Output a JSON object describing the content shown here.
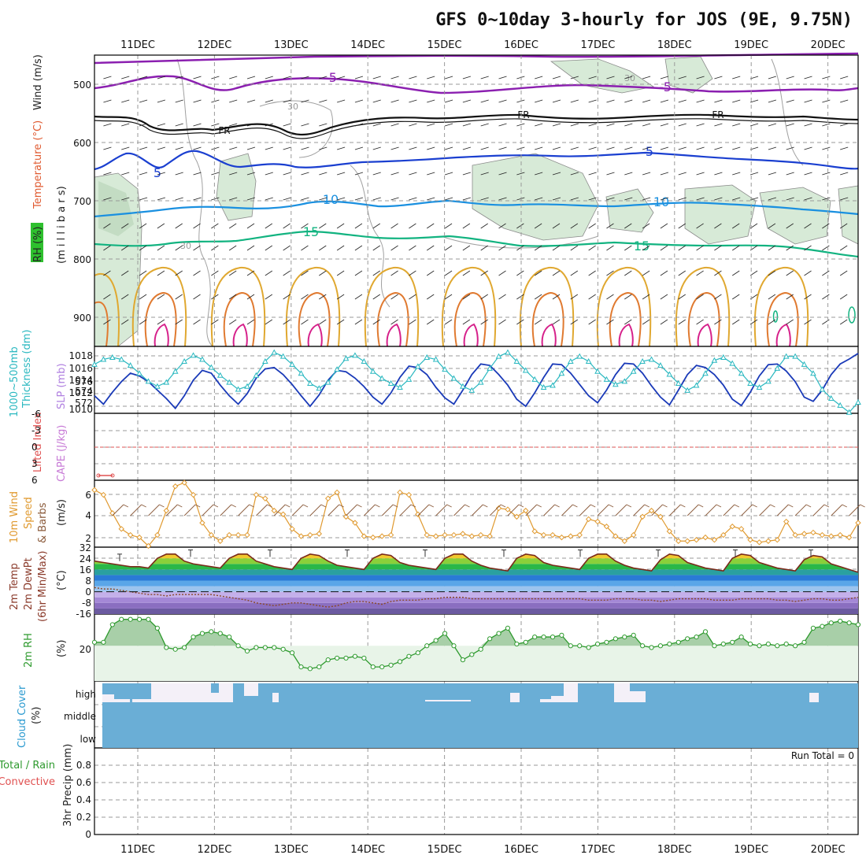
{
  "title": "GFS 0~10day 3-hourly for JOS (9E, 9.75N)",
  "run_total": "Run Total = 0",
  "dates": [
    "11DEC",
    "12DEC",
    "13DEC",
    "14DEC",
    "15DEC",
    "16DEC",
    "17DEC",
    "18DEC",
    "19DEC",
    "20DEC"
  ],
  "panels": {
    "upper": {
      "labels": [
        "RH (%)",
        "Temperature (°C)",
        "Wind (m/s)"
      ],
      "unit_label": "(m i l l i b a r s)",
      "ticks": [
        "500",
        "600",
        "700",
        "800",
        "900"
      ]
    },
    "thickness": {
      "left_label": "1000~500mb",
      "left_label2": "Thickness (dm)",
      "right_label": "SLP (mb)",
      "thk_ticks": [
        "576",
        "574",
        "572"
      ],
      "slp_ticks": [
        "1018",
        "1016",
        "1014",
        "1012",
        "1010"
      ]
    },
    "cape": {
      "label1": "Lifted Index",
      "label2": "CAPE (J/kg)",
      "ticks": [
        "-6",
        "-3",
        "0",
        "3",
        "6"
      ]
    },
    "wind10m": {
      "label1": "10m Wind",
      "label2": "Speed",
      "label3": "& Barbs",
      "unit": "(m/s)",
      "ticks": [
        "6",
        "4",
        "2"
      ]
    },
    "temp2m": {
      "label1": "2m Temp",
      "label2": "2m DewPt",
      "label3": "(6hr Min/Max)",
      "unit": "(°C)",
      "ticks": [
        "32",
        "24",
        "16",
        "8",
        "0",
        "-8",
        "-16"
      ]
    },
    "rh2m": {
      "label": "2m RH",
      "unit": "(%)",
      "ticks": [
        "20"
      ]
    },
    "cloud": {
      "label": "Cloud Cover",
      "unit": "(%)",
      "ticks": [
        "high",
        "middle",
        "low"
      ]
    },
    "precip": {
      "label1": "Total / Rain",
      "label2": "Convective",
      "label3": "3hr Precip (mm)",
      "ticks": [
        "0.8",
        "0.6",
        "0.4",
        "0.2",
        "0"
      ]
    }
  },
  "contour_labels": [
    "-5",
    "-5",
    "FR",
    "FR",
    "FR",
    "5",
    "5",
    "10",
    "10",
    "15",
    "15",
    "30",
    "30",
    "30"
  ],
  "colors": {
    "rh_fill": "#d6ead6",
    "temp_purple": "#8b1fb0",
    "temp_blue": "#1a3fd0",
    "temp_cyan": "#1a90e0",
    "temp_green": "#12b380",
    "slp": "#1a3ab8",
    "thickness": "#2ab8c0",
    "wind": "#e09a30",
    "rh2m": "#2e9a2e",
    "cloud": "#6aaed6",
    "cape_zero": "#e05050"
  },
  "chart_data": {
    "type": "line",
    "x_unit": "3-hourly steps from 10 DEC 12Z",
    "date_labels": [
      "11DEC",
      "12DEC",
      "13DEC",
      "14DEC",
      "15DEC",
      "16DEC",
      "17DEC",
      "18DEC",
      "19DEC",
      "20DEC"
    ],
    "series": [
      {
        "name": "SLP (mb)",
        "ylim": [
          1009.5,
          1019
        ],
        "values": [
          1012.0,
          1010.8,
          1012.5,
          1014.0,
          1015.2,
          1014.8,
          1014.0,
          1012.8,
          1011.6,
          1010.2,
          1012.0,
          1014.2,
          1015.6,
          1015.2,
          1013.5,
          1012.0,
          1010.8,
          1012.3,
          1014.5,
          1015.8,
          1016.0,
          1015.0,
          1013.6,
          1012.0,
          1010.5,
          1012.1,
          1014.2,
          1015.6,
          1015.4,
          1014.5,
          1013.3,
          1011.8,
          1010.8,
          1012.4,
          1014.6,
          1016.2,
          1016.0,
          1015.0,
          1013.2,
          1011.7,
          1010.8,
          1012.8,
          1015.0,
          1016.5,
          1016.3,
          1015.0,
          1013.5,
          1011.5,
          1010.5,
          1012.4,
          1014.6,
          1016.5,
          1016.4,
          1015.2,
          1013.6,
          1012.0,
          1011.0,
          1012.8,
          1015.0,
          1016.6,
          1016.5,
          1015.2,
          1013.4,
          1011.8,
          1010.7,
          1012.8,
          1015.0,
          1016.3,
          1016.0,
          1015.0,
          1013.5,
          1011.5,
          1010.6,
          1012.5,
          1014.8,
          1016.4,
          1016.5,
          1015.5,
          1014.0,
          1011.8,
          1011.2,
          1012.8,
          1015.0,
          1016.5,
          1017.2,
          1018.0
        ]
      },
      {
        "name": "1000~500mb Thickness (dm)",
        "ylim": [
          570.8,
          577.5
        ],
        "values": [
          575.7,
          576.2,
          576.4,
          576.2,
          575.6,
          574.8,
          574.0,
          573.5,
          573.9,
          575.0,
          576.0,
          576.6,
          576.2,
          575.4,
          574.6,
          573.9,
          573.2,
          573.5,
          574.6,
          576.0,
          576.9,
          576.5,
          575.7,
          574.8,
          573.8,
          573.3,
          573.9,
          575.2,
          576.3,
          576.6,
          576.0,
          575.0,
          574.3,
          573.8,
          573.4,
          574.2,
          575.5,
          576.4,
          576.2,
          575.2,
          574.3,
          573.5,
          573.1,
          573.9,
          575.3,
          576.5,
          576.9,
          576.0,
          575.1,
          574.2,
          573.4,
          573.6,
          574.8,
          576.0,
          576.5,
          576.0,
          575.0,
          574.2,
          573.7,
          574.0,
          575.0,
          576.0,
          576.2,
          575.6,
          574.7,
          573.8,
          573.1,
          573.6,
          574.8,
          576.1,
          576.4,
          575.8,
          574.8,
          573.8,
          573.4,
          574.0,
          575.3,
          576.5,
          576.5,
          575.7,
          574.8,
          573.2,
          572.3,
          571.6,
          570.9,
          571.9
        ]
      },
      {
        "name": "10m Wind Speed (m/s)",
        "ylim": [
          1.5,
          7
        ],
        "values": [
          6.2,
          5.8,
          4.3,
          3.0,
          2.5,
          2.3,
          1.6,
          2.5,
          4.5,
          6.5,
          6.8,
          5.8,
          3.5,
          2.5,
          2.0,
          2.5,
          2.5,
          2.5,
          5.8,
          5.5,
          4.5,
          4.2,
          3.0,
          2.4,
          2.5,
          2.6,
          5.5,
          6.0,
          4.0,
          3.5,
          2.4,
          2.3,
          2.4,
          2.5,
          6.0,
          5.8,
          4.2,
          2.5,
          2.4,
          2.5,
          2.5,
          2.6,
          2.4,
          2.5,
          2.4,
          4.7,
          4.6,
          4.0,
          4.5,
          2.8,
          2.5,
          2.5,
          2.3,
          2.4,
          2.5,
          3.8,
          3.6,
          3.2,
          2.4,
          2.0,
          2.5,
          4.0,
          4.5,
          4.0,
          2.8,
          2.0,
          2.0,
          2.1,
          2.3,
          2.1,
          2.5,
          3.2,
          3.0,
          2.1,
          1.9,
          2.0,
          2.1,
          3.6,
          2.5,
          2.6,
          2.7,
          2.5,
          2.4,
          2.5,
          2.3,
          3.5
        ]
      },
      {
        "name": "2m Temp (°C)",
        "ylim": [
          -16,
          32
        ],
        "values": [
          22,
          21,
          20,
          19,
          18,
          18,
          17,
          24,
          27,
          27,
          22,
          20,
          19,
          18,
          17,
          24,
          27,
          27,
          22,
          20,
          18,
          17,
          16,
          24,
          27,
          26,
          22,
          19,
          18,
          17,
          16,
          24,
          27,
          26,
          21,
          19,
          18,
          17,
          16,
          24,
          27,
          27,
          22,
          19,
          17,
          16,
          15,
          24,
          27,
          26,
          21,
          19,
          18,
          17,
          16,
          24,
          27,
          27,
          22,
          19,
          17,
          16,
          15,
          23,
          27,
          26,
          21,
          19,
          17,
          16,
          15,
          24,
          27,
          26,
          21,
          19,
          17,
          16,
          15,
          23,
          26,
          25,
          20,
          18,
          16,
          14
        ]
      },
      {
        "name": "2m DewPt (°C)",
        "ylim": [
          -16,
          32
        ],
        "values": [
          3,
          2,
          2,
          1,
          0,
          -1,
          -2,
          -2,
          -3,
          -2,
          -2,
          -2,
          -2,
          -2,
          -3,
          -4,
          -5,
          -6,
          -8,
          -9,
          -10,
          -9,
          -8,
          -8,
          -9,
          -10,
          -11,
          -10,
          -8,
          -7,
          -7,
          -8,
          -9,
          -7,
          -6,
          -6,
          -6,
          -5,
          -5,
          -4,
          -4,
          -4,
          -5,
          -5,
          -5,
          -5,
          -5,
          -5,
          -5,
          -5,
          -5,
          -5,
          -5,
          -5,
          -5,
          -6,
          -6,
          -6,
          -5,
          -5,
          -5,
          -6,
          -6,
          -7,
          -6,
          -5,
          -5,
          -5,
          -5,
          -6,
          -6,
          -6,
          -5,
          -5,
          -5,
          -5,
          -6,
          -6,
          -7,
          -6,
          -5,
          -5,
          -6,
          -6,
          -5,
          -4
        ]
      },
      {
        "name": "2m RH (%)",
        "ylim": [
          0,
          38
        ],
        "values": [
          22,
          22,
          32,
          35,
          35,
          35,
          35,
          30,
          19,
          18,
          19,
          25,
          27,
          28,
          27,
          25,
          20,
          17,
          19,
          19,
          19,
          18,
          16,
          8,
          7,
          8,
          12,
          13,
          13,
          14,
          13,
          8,
          8,
          9,
          11,
          14,
          16,
          20,
          23,
          27,
          20,
          12,
          15,
          18,
          24,
          27,
          30,
          21,
          22,
          25,
          25,
          25,
          26,
          20,
          20,
          19,
          21,
          22,
          24,
          25,
          26,
          20,
          19,
          20,
          21,
          22,
          24,
          25,
          28,
          20,
          21,
          22,
          25,
          21,
          20,
          21,
          20,
          21,
          20,
          22,
          30,
          31,
          33,
          34,
          33,
          32
        ]
      },
      {
        "name": "3hr Precip (mm)",
        "ylim": [
          0,
          0.9
        ],
        "values": []
      }
    ],
    "cape": {
      "ylim": [
        -6,
        6
      ],
      "lifted_index_zero_line": 0
    }
  }
}
